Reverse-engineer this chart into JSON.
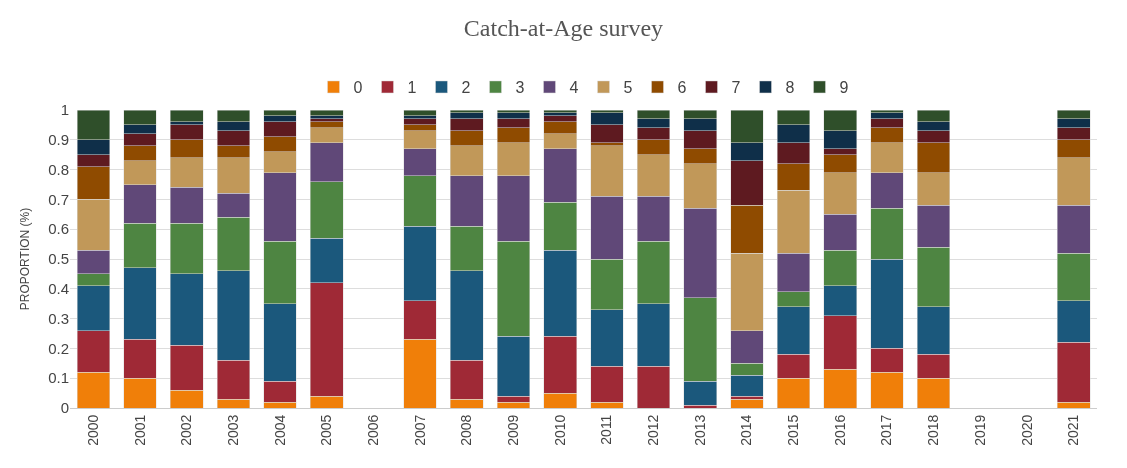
{
  "chart_data": {
    "type": "bar",
    "stacked": true,
    "title": "Catch-at-Age survey",
    "ylabel": "PROPORTION (%)",
    "categories": [
      "2000",
      "2001",
      "2002",
      "2003",
      "2004",
      "2005",
      "2006",
      "2007",
      "2008",
      "2009",
      "2010",
      "2011",
      "2012",
      "2013",
      "2014",
      "2015",
      "2016",
      "2017",
      "2018",
      "2019",
      "2020",
      "2021"
    ],
    "ylim": [
      0,
      1
    ],
    "yticks": [
      0,
      0.1,
      0.2,
      0.3,
      0.4,
      0.5,
      0.6,
      0.7,
      0.8,
      0.9,
      1
    ],
    "grid": "y",
    "legend": "top",
    "series": [
      {
        "name": "0",
        "color": "#f07f09",
        "values": [
          0.12,
          0.1,
          0.06,
          0.03,
          0.02,
          0.04,
          null,
          0.23,
          0.03,
          0.02,
          0.05,
          0.02,
          0,
          0,
          0.03,
          0.1,
          0.13,
          0.12,
          0.1,
          null,
          null,
          0.02
        ]
      },
      {
        "name": "1",
        "color": "#9f2936",
        "values": [
          0.14,
          0.13,
          0.15,
          0.13,
          0.07,
          0.38,
          null,
          0.13,
          0.13,
          0.02,
          0.19,
          0.12,
          0.14,
          0.01,
          0.01,
          0.08,
          0.18,
          0.08,
          0.08,
          null,
          null,
          0.2
        ]
      },
      {
        "name": "2",
        "color": "#1b587c",
        "values": [
          0.15,
          0.24,
          0.24,
          0.3,
          0.26,
          0.15,
          null,
          0.25,
          0.3,
          0.2,
          0.29,
          0.19,
          0.21,
          0.08,
          0.07,
          0.16,
          0.1,
          0.3,
          0.16,
          null,
          null,
          0.14
        ]
      },
      {
        "name": "3",
        "color": "#4e8542",
        "values": [
          0.04,
          0.15,
          0.17,
          0.18,
          0.21,
          0.19,
          null,
          0.17,
          0.15,
          0.32,
          0.16,
          0.17,
          0.21,
          0.28,
          0.04,
          0.05,
          0.12,
          0.17,
          0.2,
          null,
          null,
          0.16
        ]
      },
      {
        "name": "4",
        "color": "#604878",
        "values": [
          0.08,
          0.13,
          0.12,
          0.08,
          0.23,
          0.13,
          null,
          0.09,
          0.17,
          0.22,
          0.18,
          0.21,
          0.15,
          0.3,
          0.11,
          0.13,
          0.12,
          0.12,
          0.14,
          null,
          null,
          0.16
        ]
      },
      {
        "name": "5",
        "color": "#c19859",
        "values": [
          0.17,
          0.08,
          0.1,
          0.12,
          0.07,
          0.05,
          null,
          0.06,
          0.1,
          0.11,
          0.05,
          0.17,
          0.14,
          0.15,
          0.26,
          0.21,
          0.14,
          0.1,
          0.11,
          null,
          null,
          0.16
        ]
      },
      {
        "name": "6",
        "color": "#8f4b00",
        "values": [
          0.11,
          0.05,
          0.06,
          0.04,
          0.05,
          0.02,
          null,
          0.02,
          0.05,
          0.05,
          0.04,
          0.01,
          0.05,
          0.05,
          0.16,
          0.09,
          0.06,
          0.05,
          0.1,
          null,
          null,
          0.06
        ]
      },
      {
        "name": "7",
        "color": "#5e1a20",
        "values": [
          0.04,
          0.04,
          0.05,
          0.05,
          0.05,
          0.01,
          null,
          0.02,
          0.04,
          0.03,
          0.02,
          0.06,
          0.04,
          0.06,
          0.15,
          0.07,
          0.02,
          0.03,
          0.04,
          null,
          null,
          0.04
        ]
      },
      {
        "name": "8",
        "color": "#0f2f49",
        "values": [
          0.05,
          0.03,
          0.01,
          0.03,
          0.02,
          0.01,
          null,
          0.01,
          0.02,
          0.02,
          0.01,
          0.04,
          0.03,
          0.04,
          0.06,
          0.06,
          0.06,
          0.02,
          0.03,
          null,
          null,
          0.03
        ]
      },
      {
        "name": "9",
        "color": "#2f4f2a",
        "values": [
          0.1,
          0.05,
          0.04,
          0.04,
          0.02,
          0.02,
          null,
          0.02,
          0.01,
          0.01,
          0.01,
          0.01,
          0.03,
          0.03,
          0.11,
          0.05,
          0.07,
          0.01,
          0.04,
          null,
          null,
          0.03
        ]
      }
    ]
  }
}
